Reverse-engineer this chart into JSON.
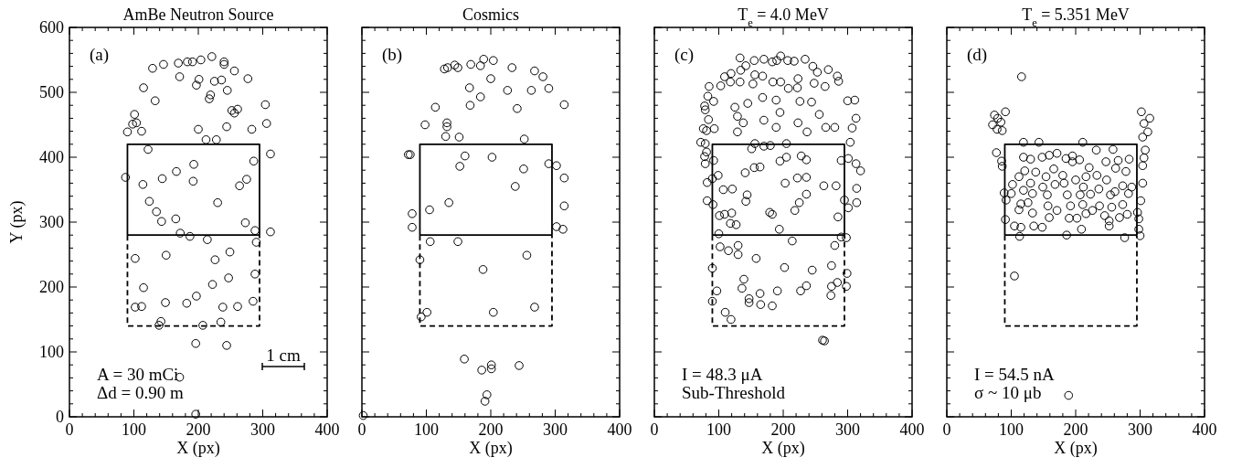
{
  "chart_data": [
    {
      "type": "scatter",
      "title": "AmBe Neutron Source",
      "xlabel": "X (px)",
      "ylabel": "Y (px)",
      "annotations": [
        "(a)",
        "A = 30 mCi",
        "Δd = 0.90 m",
        "1 cm"
      ],
      "xlim": [
        0,
        400
      ],
      "ylim": [
        0,
        600
      ],
      "xticks": [
        0,
        {
          "value": 20,
          "label": null
        },
        {
          "value": 40,
          "label": null
        },
        {
          "value": 60,
          "label": null
        },
        {
          "value": 80,
          "label": null
        },
        100,
        {
          "value": 120,
          "label": null
        },
        {
          "value": 140,
          "label": null
        },
        {
          "value": 160,
          "label": null
        },
        {
          "value": 180,
          "label": null
        },
        200,
        {
          "value": 220,
          "label": null
        },
        {
          "value": 240,
          "label": null
        },
        {
          "value": 260,
          "label": null
        },
        {
          "value": 280,
          "label": null
        },
        300,
        {
          "value": 320,
          "label": null
        },
        {
          "value": 340,
          "label": null
        },
        {
          "value": 360,
          "label": null
        },
        {
          "value": 380,
          "label": null
        },
        400
      ],
      "yticks": [
        0,
        {
          "value": 20,
          "label": null
        },
        {
          "value": 40,
          "label": null
        },
        {
          "value": 60,
          "label": null
        },
        {
          "value": 80,
          "label": null
        },
        100,
        {
          "value": 120,
          "label": null
        },
        {
          "value": 140,
          "label": null
        },
        {
          "value": 160,
          "label": null
        },
        {
          "value": 180,
          "label": null
        },
        200,
        {
          "value": 220,
          "label": null
        },
        {
          "value": 240,
          "label": null
        },
        {
          "value": 260,
          "label": null
        },
        {
          "value": 280,
          "label": null
        },
        300,
        {
          "value": 320,
          "label": null
        },
        {
          "value": 340,
          "label": null
        },
        {
          "value": 360,
          "label": null
        },
        {
          "value": 380,
          "label": null
        },
        400,
        {
          "value": 420,
          "label": null
        },
        {
          "value": 440,
          "label": null
        },
        {
          "value": 460,
          "label": null
        },
        {
          "value": 480,
          "label": null
        },
        500,
        {
          "value": 520,
          "label": null
        },
        {
          "value": 540,
          "label": null
        },
        {
          "value": 560,
          "label": null
        },
        {
          "value": 580,
          "label": null
        },
        600
      ],
      "series": [
        {
          "type": "line",
          "marker": "none",
          "line_style": "solid",
          "color": "#000000",
          "x": [
            90,
            90,
            295,
            295
          ],
          "values": [
            280,
            420,
            420,
            280
          ]
        },
        {
          "type": "line",
          "marker": "none",
          "line_style": "solid",
          "color": "#000000",
          "x": [
            90,
            295
          ],
          "values": [
            280,
            280
          ]
        },
        {
          "type": "line",
          "marker": "none",
          "line_style": "dashed",
          "color": "#000000",
          "x": [
            90,
            90,
            295,
            295
          ],
          "values": [
            280,
            140,
            140,
            280
          ]
        },
        {
          "type": "scatter",
          "marker": "circle",
          "color": "#000000",
          "x": [
            129,
            146,
            169,
            183,
            191,
            204,
            221,
            240,
            240,
            256,
            277,
            171,
            201,
            197,
            225,
            236,
            245,
            115,
            133,
            219,
            217,
            252,
            256,
            261,
            304,
            306,
            101,
            98,
            104,
            90,
            112,
            200,
            244,
            283,
            212,
            228,
            122,
            312,
            286,
            193,
            166,
            144,
            192,
            87,
            114,
            275,
            264,
            124,
            230,
            135,
            143,
            165,
            273,
            172,
            187,
            214,
            288,
            312,
            290,
            102,
            150,
            226,
            249,
            288,
            247,
            222,
            115,
            197,
            102,
            112,
            149,
            182,
            238,
            261,
            285,
            142,
            139,
            207,
            235,
            196,
            244,
            171,
            196
          ],
          "values": [
            537,
            543,
            545,
            547,
            547,
            550,
            555,
            547,
            543,
            533,
            521,
            524,
            520,
            511,
            517,
            519,
            503,
            507,
            487,
            496,
            490,
            472,
            468,
            474,
            481,
            452,
            466,
            451,
            453,
            439,
            440,
            443,
            447,
            443,
            427,
            427,
            412,
            405,
            394,
            389,
            378,
            367,
            363,
            369,
            358,
            366,
            356,
            332,
            330,
            316,
            301,
            305,
            299,
            283,
            278,
            273,
            287,
            285,
            269,
            244,
            249,
            242,
            254,
            220,
            214,
            204,
            199,
            186,
            169,
            170,
            176,
            175,
            169,
            170,
            178,
            147,
            141,
            141,
            146,
            113,
            110,
            61,
            4
          ]
        }
      ]
    },
    {
      "type": "scatter",
      "title": "Cosmics",
      "xlabel": "X (px)",
      "annotations": [
        "(b)"
      ],
      "xlim": [
        0,
        400
      ],
      "ylim": [
        0,
        600
      ],
      "tick_labels": "x",
      "xticks": [
        0,
        {
          "value": 20,
          "label": null
        },
        {
          "value": 40,
          "label": null
        },
        {
          "value": 60,
          "label": null
        },
        {
          "value": 80,
          "label": null
        },
        100,
        {
          "value": 120,
          "label": null
        },
        {
          "value": 140,
          "label": null
        },
        {
          "value": 160,
          "label": null
        },
        {
          "value": 180,
          "label": null
        },
        200,
        {
          "value": 220,
          "label": null
        },
        {
          "value": 240,
          "label": null
        },
        {
          "value": 260,
          "label": null
        },
        {
          "value": 280,
          "label": null
        },
        300,
        {
          "value": 320,
          "label": null
        },
        {
          "value": 340,
          "label": null
        },
        {
          "value": 360,
          "label": null
        },
        {
          "value": 380,
          "label": null
        },
        400
      ],
      "yticks": [
        0,
        {
          "value": 20,
          "label": null
        },
        {
          "value": 40,
          "label": null
        },
        {
          "value": 60,
          "label": null
        },
        {
          "value": 80,
          "label": null
        },
        100,
        {
          "value": 120,
          "label": null
        },
        {
          "value": 140,
          "label": null
        },
        {
          "value": 160,
          "label": null
        },
        {
          "value": 180,
          "label": null
        },
        200,
        {
          "value": 220,
          "label": null
        },
        {
          "value": 240,
          "label": null
        },
        {
          "value": 260,
          "label": null
        },
        {
          "value": 280,
          "label": null
        },
        300,
        {
          "value": 320,
          "label": null
        },
        {
          "value": 340,
          "label": null
        },
        {
          "value": 360,
          "label": null
        },
        {
          "value": 380,
          "label": null
        },
        400,
        {
          "value": 420,
          "label": null
        },
        {
          "value": 440,
          "label": null
        },
        {
          "value": 460,
          "label": null
        },
        {
          "value": 480,
          "label": null
        },
        500,
        {
          "value": 520,
          "label": null
        },
        {
          "value": 540,
          "label": null
        },
        {
          "value": 560,
          "label": null
        },
        {
          "value": 580,
          "label": null
        },
        600
      ],
      "series": [
        {
          "type": "line",
          "marker": "none",
          "line_style": "solid",
          "color": "#000000",
          "x": [
            90,
            90,
            295,
            295
          ],
          "values": [
            280,
            420,
            420,
            280
          ]
        },
        {
          "type": "line",
          "marker": "none",
          "line_style": "solid",
          "color": "#000000",
          "x": [
            90,
            295
          ],
          "values": [
            280,
            280
          ]
        },
        {
          "type": "line",
          "marker": "none",
          "line_style": "dashed",
          "color": "#000000",
          "x": [
            90,
            90,
            295,
            295
          ],
          "values": [
            280,
            140,
            140,
            280
          ]
        },
        {
          "type": "scatter",
          "marker": "circle",
          "color": "#000000",
          "x": [
            128,
            133,
            144,
            149,
            169,
            184,
            189,
            204,
            233,
            268,
            281,
            200,
            167,
            226,
            263,
            290,
            184,
            314,
            114,
            168,
            241,
            98,
            132,
            132,
            130,
            151,
            252,
            72,
            75,
            160,
            202,
            152,
            251,
            290,
            302,
            314,
            238,
            314,
            135,
            105,
            78,
            78,
            302,
            312,
            106,
            149,
            90,
            256,
            188,
            268,
            101,
            92,
            204,
            159,
            201,
            201,
            186,
            244,
            194,
            191,
            2
          ],
          "values": [
            536,
            538,
            542,
            538,
            543,
            541,
            551,
            549,
            538,
            533,
            524,
            521,
            507,
            503,
            503,
            506,
            493,
            481,
            477,
            480,
            475,
            450,
            453,
            447,
            432,
            431,
            428,
            404,
            404,
            402,
            400,
            386,
            382,
            390,
            387,
            368,
            355,
            325,
            330,
            319,
            313,
            292,
            293,
            289,
            270,
            270,
            242,
            249,
            227,
            169,
            161,
            154,
            161,
            89,
            80,
            74,
            72,
            79,
            34,
            24,
            2
          ]
        }
      ]
    },
    {
      "type": "scatter",
      "title": "T$_{e}$ = 4.0 MeV",
      "xlabel": "X (px)",
      "annotations": [
        "(c)",
        "I = 48.3 μA",
        "Sub-Threshold"
      ],
      "xlim": [
        0,
        400
      ],
      "ylim": [
        0,
        600
      ],
      "tick_labels": "x",
      "xticks": [
        0,
        {
          "value": 20,
          "label": null
        },
        {
          "value": 40,
          "label": null
        },
        {
          "value": 60,
          "label": null
        },
        {
          "value": 80,
          "label": null
        },
        100,
        {
          "value": 120,
          "label": null
        },
        {
          "value": 140,
          "label": null
        },
        {
          "value": 160,
          "label": null
        },
        {
          "value": 180,
          "label": null
        },
        200,
        {
          "value": 220,
          "label": null
        },
        {
          "value": 240,
          "label": null
        },
        {
          "value": 260,
          "label": null
        },
        {
          "value": 280,
          "label": null
        },
        300,
        {
          "value": 320,
          "label": null
        },
        {
          "value": 340,
          "label": null
        },
        {
          "value": 360,
          "label": null
        },
        {
          "value": 380,
          "label": null
        },
        400
      ],
      "yticks": [
        0,
        {
          "value": 20,
          "label": null
        },
        {
          "value": 40,
          "label": null
        },
        {
          "value": 60,
          "label": null
        },
        {
          "value": 80,
          "label": null
        },
        100,
        {
          "value": 120,
          "label": null
        },
        {
          "value": 140,
          "label": null
        },
        {
          "value": 160,
          "label": null
        },
        {
          "value": 180,
          "label": null
        },
        200,
        {
          "value": 220,
          "label": null
        },
        {
          "value": 240,
          "label": null
        },
        {
          "value": 260,
          "label": null
        },
        {
          "value": 280,
          "label": null
        },
        300,
        {
          "value": 320,
          "label": null
        },
        {
          "value": 340,
          "label": null
        },
        {
          "value": 360,
          "label": null
        },
        {
          "value": 380,
          "label": null
        },
        400,
        {
          "value": 420,
          "label": null
        },
        {
          "value": 440,
          "label": null
        },
        {
          "value": 460,
          "label": null
        },
        {
          "value": 480,
          "label": null
        },
        500,
        {
          "value": 520,
          "label": null
        },
        {
          "value": 540,
          "label": null
        },
        {
          "value": 560,
          "label": null
        },
        {
          "value": 580,
          "label": null
        },
        600
      ],
      "series": [
        {
          "type": "line",
          "marker": "none",
          "line_style": "solid",
          "color": "#000000",
          "x": [
            90,
            90,
            295,
            295
          ],
          "values": [
            280,
            420,
            420,
            280
          ]
        },
        {
          "type": "line",
          "marker": "none",
          "line_style": "solid",
          "color": "#000000",
          "x": [
            90,
            295
          ],
          "values": [
            280,
            280
          ]
        },
        {
          "type": "line",
          "marker": "none",
          "line_style": "dashed",
          "color": "#000000",
          "x": [
            90,
            90,
            295,
            295
          ],
          "values": [
            280,
            140,
            140,
            280
          ]
        },
        {
          "type": "scatter",
          "marker": "circle",
          "color": "#000000",
          "x": [
            133,
            155,
            170,
            183,
            190,
            196,
            207,
            217,
            234,
            246,
            253,
            270,
            284,
            286,
            265,
            248,
            223,
            208,
            222,
            196,
            184,
            168,
            156,
            142,
            134,
            119,
            109,
            118,
            103,
            85,
            133,
            153,
            83,
            92,
            78,
            79,
            84,
            76,
            81,
            93,
            72,
            79,
            81,
            78,
            79,
            92,
            82,
            90,
            82,
            91,
            99,
            107,
            101,
            109,
            120,
            118,
            127,
            100,
            102,
            115,
            130,
            130,
            90,
            97,
            90,
            110,
            119,
            139,
            136,
            147,
            147,
            164,
            165,
            183,
            191,
            158,
            202,
            214,
            194,
            179,
            183,
            218,
            225,
            236,
            203,
            222,
            236,
            141,
            155,
            164,
            195,
            205,
            228,
            236,
            263,
            282,
            285,
            301,
            314,
            314,
            320,
            313,
            290,
            301,
            304,
            295,
            298,
            290,
            280,
            275,
            299,
            284,
            275,
            298,
            274,
            245,
            236,
            227,
            264,
            261,
            144,
            142,
            121,
            156,
            170,
            180,
            205,
            151,
            129,
            138,
            170,
            189,
            223,
            237,
            266,
            280,
            307,
            313,
            300,
            311,
            125,
            145,
            168,
            189,
            226,
            244,
            256,
            195,
            129
          ],
          "values": [
            553,
            549,
            551,
            547,
            549,
            556,
            549,
            548,
            551,
            540,
            531,
            535,
            525,
            517,
            509,
            514,
            521,
            506,
            507,
            516,
            516,
            525,
            527,
            541,
            534,
            529,
            524,
            516,
            510,
            509,
            516,
            513,
            494,
            486,
            479,
            473,
            458,
            444,
            441,
            444,
            423,
            421,
            408,
            401,
            390,
            395,
            361,
            367,
            333,
            327,
            372,
            350,
            310,
            312,
            314,
            298,
            296,
            282,
            262,
            256,
            264,
            250,
            229,
            194,
            178,
            161,
            150,
            212,
            198,
            182,
            176,
            190,
            173,
            171,
            194,
            244,
            230,
            271,
            289,
            315,
            312,
            318,
            330,
            343,
            360,
            368,
            369,
            376,
            384,
            385,
            394,
            400,
            402,
            396,
            356,
            356,
            308,
            322,
            330,
            352,
            379,
            390,
            395,
            398,
            423,
            334,
            276,
            277,
            264,
            233,
            221,
            207,
            201,
            201,
            187,
            226,
            202,
            194,
            117,
            118,
            342,
            332,
            351,
            421,
            417,
            418,
            421,
            413,
            439,
            453,
            457,
            446,
            453,
            439,
            446,
            446,
            445,
            460,
            487,
            488,
            477,
            483,
            492,
            488,
            486,
            485,
            466,
            469,
            463
          ]
        }
      ]
    },
    {
      "type": "scatter",
      "title": "T$_{e}$ = 5.351 MeV",
      "xlabel": "X (px)",
      "annotations": [
        "(d)",
        "I = 54.5 nA",
        "σ ~ 10 μb"
      ],
      "xlim": [
        0,
        400
      ],
      "ylim": [
        0,
        600
      ],
      "tick_labels": "x",
      "xticks": [
        0,
        {
          "value": 20,
          "label": null
        },
        {
          "value": 40,
          "label": null
        },
        {
          "value": 60,
          "label": null
        },
        {
          "value": 80,
          "label": null
        },
        100,
        {
          "value": 120,
          "label": null
        },
        {
          "value": 140,
          "label": null
        },
        {
          "value": 160,
          "label": null
        },
        {
          "value": 180,
          "label": null
        },
        200,
        {
          "value": 220,
          "label": null
        },
        {
          "value": 240,
          "label": null
        },
        {
          "value": 260,
          "label": null
        },
        {
          "value": 280,
          "label": null
        },
        300,
        {
          "value": 320,
          "label": null
        },
        {
          "value": 340,
          "label": null
        },
        {
          "value": 360,
          "label": null
        },
        {
          "value": 380,
          "label": null
        },
        400
      ],
      "yticks": [
        0,
        {
          "value": 20,
          "label": null
        },
        {
          "value": 40,
          "label": null
        },
        {
          "value": 60,
          "label": null
        },
        {
          "value": 80,
          "label": null
        },
        100,
        {
          "value": 120,
          "label": null
        },
        {
          "value": 140,
          "label": null
        },
        {
          "value": 160,
          "label": null
        },
        {
          "value": 180,
          "label": null
        },
        200,
        {
          "value": 220,
          "label": null
        },
        {
          "value": 240,
          "label": null
        },
        {
          "value": 260,
          "label": null
        },
        {
          "value": 280,
          "label": null
        },
        300,
        {
          "value": 320,
          "label": null
        },
        {
          "value": 340,
          "label": null
        },
        {
          "value": 360,
          "label": null
        },
        {
          "value": 380,
          "label": null
        },
        400,
        {
          "value": 420,
          "label": null
        },
        {
          "value": 440,
          "label": null
        },
        {
          "value": 460,
          "label": null
        },
        {
          "value": 480,
          "label": null
        },
        500,
        {
          "value": 520,
          "label": null
        },
        {
          "value": 540,
          "label": null
        },
        {
          "value": 560,
          "label": null
        },
        {
          "value": 580,
          "label": null
        },
        600
      ],
      "series": [
        {
          "type": "line",
          "marker": "none",
          "line_style": "solid",
          "color": "#000000",
          "x": [
            90,
            90,
            295,
            295
          ],
          "values": [
            280,
            420,
            420,
            280
          ]
        },
        {
          "type": "line",
          "marker": "none",
          "line_style": "solid",
          "color": "#000000",
          "x": [
            90,
            295
          ],
          "values": [
            280,
            280
          ]
        },
        {
          "type": "line",
          "marker": "none",
          "line_style": "dashed",
          "color": "#000000",
          "x": [
            90,
            90,
            295,
            295
          ],
          "values": [
            280,
            140,
            140,
            280
          ]
        },
        {
          "type": "scatter",
          "marker": "circle",
          "color": "#000000",
          "x": [
            74,
            79,
            91,
            71,
            78,
            84,
            86,
            77,
            85,
            86,
            89,
            92,
            91,
            116,
            105,
            189,
            302,
            315,
            306,
            312,
            304,
            308,
            306,
            304,
            304,
            301,
            298,
            298,
            300,
            296,
            119,
            143,
            211,
            232,
            258,
            119,
            130,
            148,
            159,
            171,
            185,
            195,
            206,
            221,
            247,
            266,
            283,
            112,
            121,
            138,
            154,
            166,
            180,
            200,
            216,
            233,
            248,
            262,
            278,
            102,
            130,
            149,
            168,
            182,
            212,
            236,
            273,
            287,
            100,
            119,
            133,
            156,
            187,
            207,
            223,
            254,
            261,
            282,
            115,
            126,
            157,
            171,
            192,
            211,
            226,
            237,
            256,
            273,
            112,
            133,
            159,
            190,
            202,
            216,
            245,
            268,
            280,
            252,
            252,
            105,
            115,
            135,
            148,
            209,
            186,
            113,
            276,
            195
          ],
          "values": [
            465,
            460,
            470,
            450,
            443,
            454,
            441,
            407,
            394,
            386,
            345,
            334,
            304,
            524,
            217,
            33,
            470,
            460,
            452,
            439,
            431,
            411,
            399,
            387,
            360,
            333,
            305,
            289,
            279,
            315,
            423,
            423,
            423,
            411,
            412,
            400,
            397,
            400,
            403,
            406,
            398,
            402,
            396,
            384,
            393,
            395,
            397,
            370,
            379,
            377,
            370,
            382,
            372,
            365,
            370,
            372,
            365,
            383,
            378,
            358,
            360,
            354,
            358,
            360,
            354,
            351,
            356,
            354,
            344,
            349,
            344,
            342,
            342,
            342,
            343,
            342,
            347,
            344,
            328,
            330,
            325,
            318,
            325,
            327,
            318,
            325,
            323,
            327,
            319,
            314,
            307,
            306,
            306,
            313,
            310,
            307,
            312,
            302,
            294,
            294,
            292,
            294,
            292,
            289,
            280,
            278,
            276,
            393
          ]
        }
      ]
    }
  ]
}
